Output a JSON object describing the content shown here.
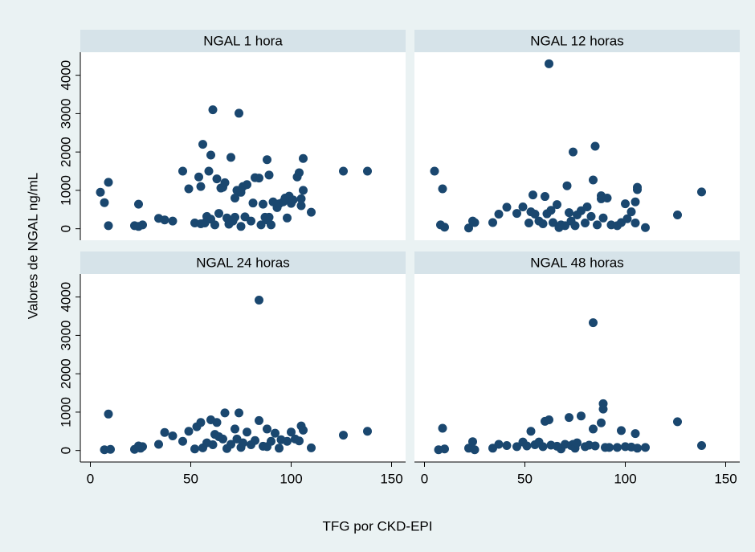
{
  "ylabel": "Valores de NGAL ng/mL",
  "xlabel": "TFG por CKD-EPI",
  "chart_data": [
    {
      "type": "scatter",
      "title": "NGAL 1 hora",
      "color": "#1a476f",
      "xlim": [
        -5,
        157
      ],
      "ylim": [
        -300,
        4600
      ],
      "yticks": [
        0,
        1000,
        2000,
        3000,
        4000
      ],
      "x": [
        5,
        7,
        9,
        9,
        22,
        24,
        24,
        26,
        34,
        37,
        41,
        46,
        49,
        52,
        54,
        55,
        55,
        56,
        57,
        58,
        59,
        60,
        60,
        61,
        62,
        63,
        64,
        65,
        66,
        67,
        68,
        69,
        70,
        71,
        72,
        72,
        73,
        74,
        75,
        75,
        76,
        77,
        78,
        80,
        81,
        82,
        84,
        85,
        86,
        87,
        88,
        88,
        89,
        89,
        90,
        91,
        93,
        94,
        96,
        97,
        98,
        99,
        100,
        101,
        103,
        104,
        105,
        105,
        106,
        106,
        110,
        126,
        138
      ],
      "values": [
        950,
        680,
        1210,
        80,
        80,
        640,
        60,
        100,
        270,
        230,
        200,
        1500,
        1040,
        150,
        1350,
        130,
        1100,
        2200,
        150,
        320,
        1500,
        1920,
        250,
        3100,
        100,
        1300,
        400,
        1060,
        1080,
        1200,
        280,
        120,
        1860,
        200,
        800,
        300,
        1000,
        3010,
        950,
        60,
        1100,
        310,
        1150,
        200,
        670,
        1330,
        1320,
        100,
        640,
        300,
        1800,
        230,
        1400,
        300,
        100,
        700,
        550,
        650,
        700,
        800,
        280,
        850,
        660,
        750,
        1350,
        1460,
        780,
        600,
        1830,
        1000,
        430,
        1500,
        1500
      ]
    },
    {
      "type": "scatter",
      "title": "NGAL 12 horas",
      "color": "#1a476f",
      "xlim": [
        -5,
        157
      ],
      "ylim": [
        -300,
        4600
      ],
      "x": [
        5,
        8,
        9,
        10,
        22,
        24,
        25,
        34,
        37,
        41,
        46,
        49,
        52,
        53,
        54,
        55,
        57,
        59,
        60,
        61,
        62,
        63,
        64,
        66,
        67,
        68,
        70,
        71,
        72,
        73,
        74,
        75,
        76,
        78,
        80,
        81,
        83,
        84,
        85,
        86,
        88,
        88,
        89,
        91,
        93,
        96,
        98,
        100,
        101,
        103,
        105,
        106,
        106,
        105,
        110,
        126,
        138
      ],
      "values": [
        1500,
        100,
        1040,
        40,
        20,
        200,
        160,
        160,
        380,
        560,
        400,
        570,
        150,
        440,
        880,
        380,
        200,
        130,
        840,
        390,
        4300,
        480,
        160,
        630,
        30,
        100,
        80,
        1120,
        420,
        200,
        2000,
        80,
        360,
        470,
        150,
        570,
        320,
        1270,
        2150,
        100,
        860,
        780,
        280,
        800,
        100,
        80,
        160,
        650,
        260,
        440,
        700,
        1080,
        1020,
        150,
        30,
        360,
        960
      ]
    },
    {
      "type": "scatter",
      "title": "NGAL 24 horas",
      "color": "#1a476f",
      "xlim": [
        -5,
        157
      ],
      "ylim": [
        -300,
        4600
      ],
      "xticks": [
        0,
        50,
        100,
        150
      ],
      "yticks": [
        0,
        1000,
        2000,
        3000,
        4000
      ],
      "x": [
        7,
        9,
        10,
        22,
        24,
        25,
        26,
        34,
        37,
        41,
        46,
        49,
        52,
        53,
        55,
        56,
        58,
        60,
        61,
        62,
        63,
        64,
        66,
        67,
        68,
        70,
        72,
        73,
        74,
        75,
        76,
        78,
        80,
        82,
        84,
        84,
        86,
        88,
        88,
        90,
        92,
        94,
        95,
        98,
        100,
        102,
        104,
        105,
        106,
        110,
        126,
        138
      ],
      "values": [
        20,
        950,
        30,
        30,
        120,
        60,
        100,
        160,
        470,
        380,
        240,
        500,
        40,
        620,
        730,
        70,
        200,
        800,
        150,
        420,
        730,
        360,
        300,
        980,
        50,
        160,
        560,
        300,
        980,
        80,
        200,
        480,
        150,
        260,
        780,
        3920,
        110,
        560,
        100,
        240,
        450,
        60,
        280,
        240,
        480,
        300,
        250,
        640,
        530,
        70,
        400,
        500
      ]
    },
    {
      "type": "scatter",
      "title": "NGAL 48 horas",
      "color": "#1a476f",
      "xlim": [
        -5,
        157
      ],
      "ylim": [
        -300,
        4600
      ],
      "xticks": [
        0,
        50,
        100,
        150
      ],
      "x": [
        7,
        9,
        10,
        22,
        24,
        25,
        34,
        37,
        41,
        46,
        49,
        51,
        53,
        55,
        57,
        59,
        60,
        62,
        63,
        66,
        68,
        70,
        72,
        73,
        74,
        75,
        76,
        78,
        80,
        82,
        84,
        84,
        85,
        88,
        89,
        89,
        90,
        92,
        96,
        98,
        100,
        103,
        105,
        106,
        110,
        126,
        138
      ],
      "values": [
        20,
        580,
        40,
        60,
        230,
        20,
        60,
        160,
        130,
        100,
        220,
        120,
        500,
        150,
        220,
        100,
        760,
        800,
        140,
        110,
        40,
        160,
        860,
        130,
        160,
        60,
        200,
        900,
        100,
        140,
        560,
        3330,
        120,
        720,
        1220,
        1080,
        80,
        80,
        80,
        520,
        100,
        90,
        440,
        60,
        80,
        750,
        130
      ]
    }
  ]
}
